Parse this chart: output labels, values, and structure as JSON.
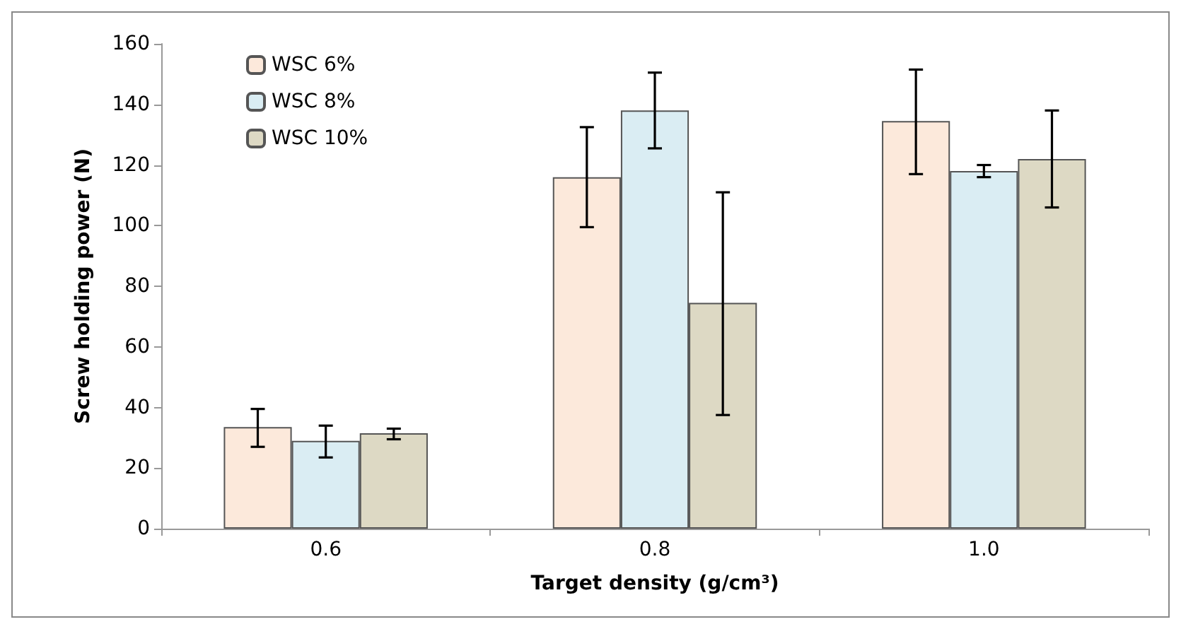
{
  "chart_data": {
    "type": "bar",
    "xlabel": "Target density (g/cm³)",
    "ylabel": "Screw holding power (N)",
    "categories": [
      "0.6",
      "0.8",
      "1.0"
    ],
    "ylim": [
      0,
      160
    ],
    "yticks": [
      0,
      20,
      40,
      60,
      80,
      100,
      120,
      140,
      160
    ],
    "grid": false,
    "legend": "top left",
    "series": [
      {
        "name": "WSC 6%",
        "color": "#fce9db",
        "values": [
          33.5,
          116,
          134.5
        ],
        "errors": [
          [
            27,
            39.5
          ],
          [
            99.5,
            132.5
          ],
          [
            117,
            151.5
          ]
        ]
      },
      {
        "name": "WSC 8%",
        "color": "#daedf3",
        "values": [
          29,
          138,
          118
        ],
        "errors": [
          [
            23.5,
            34
          ],
          [
            125.5,
            150.5
          ],
          [
            116,
            120
          ]
        ]
      },
      {
        "name": "WSC 10%",
        "color": "#ddd9c4",
        "values": [
          31.5,
          74.5,
          122
        ],
        "errors": [
          [
            29.5,
            33
          ],
          [
            37.5,
            111
          ],
          [
            106,
            138
          ]
        ]
      }
    ]
  }
}
